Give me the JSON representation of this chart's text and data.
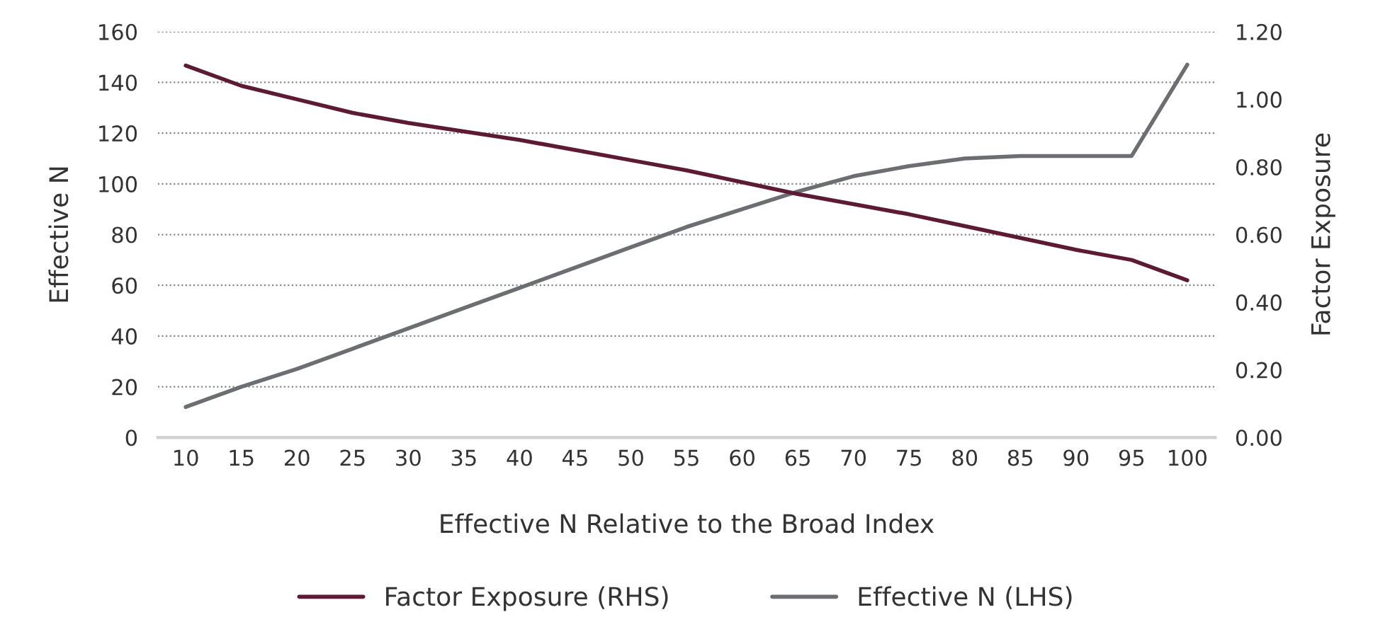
{
  "chart_data": {
    "type": "line",
    "xlabel": "Effective N Relative to the Broad Index",
    "ylabel": "Effective N",
    "y2label": "Factor Exposure",
    "categories": [
      "10",
      "15",
      "20",
      "25",
      "30",
      "35",
      "40",
      "45",
      "50",
      "55",
      "60",
      "65",
      "70",
      "75",
      "80",
      "85",
      "90",
      "95",
      "100"
    ],
    "series": [
      {
        "name": "Factor Exposure (RHS)",
        "color": "#5c1a33",
        "axis": "y2",
        "values": [
          1.1,
          1.04,
          1.0,
          0.96,
          0.93,
          0.905,
          0.88,
          0.85,
          0.82,
          0.79,
          0.755,
          0.72,
          0.69,
          0.66,
          0.625,
          0.59,
          0.555,
          0.525,
          0.465
        ]
      },
      {
        "name": "Effective N (LHS)",
        "color": "#6d6e71",
        "values": [
          12,
          20,
          27,
          35,
          43,
          51,
          59,
          67,
          75,
          83,
          90,
          97,
          103,
          107,
          110,
          111,
          111,
          111,
          147
        ]
      }
    ],
    "ylim": [
      0,
      160
    ],
    "yticks": [
      0,
      20,
      40,
      60,
      80,
      100,
      120,
      140,
      160
    ],
    "y2lim": [
      0,
      1.2
    ],
    "y2ticks": [
      {
        "value": 0,
        "label": "0.00"
      },
      {
        "value": 0.2,
        "label": "0.20"
      },
      {
        "value": 0.4,
        "label": "0.40"
      },
      {
        "value": 0.6,
        "label": "0.60"
      },
      {
        "value": 0.8,
        "label": "0.80"
      },
      {
        "value": 1.0,
        "label": "1.00"
      },
      {
        "value": 1.2,
        "label": "1.20"
      }
    ],
    "grid": "y",
    "legend": "bottom",
    "line_style": "solid",
    "marker": "none"
  }
}
